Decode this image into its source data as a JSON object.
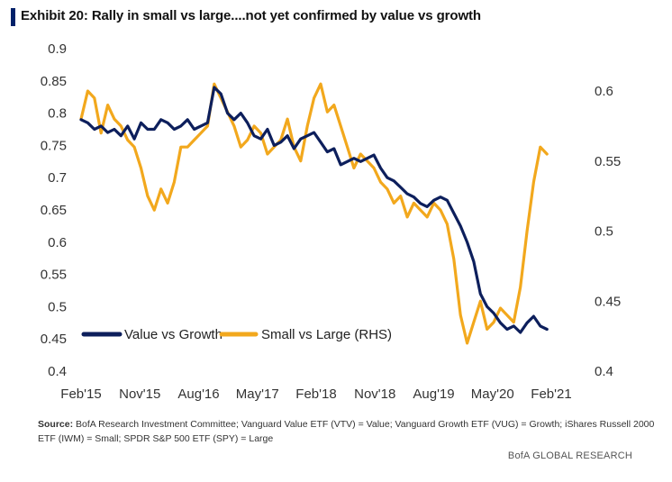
{
  "title": "Exhibit 20: Rally in small vs large....not yet confirmed by value vs growth",
  "source_label": "Source:",
  "source_text": "BofA Research Investment Committee; Vanguard Value ETF (VTV) = Value; Vanguard Growth ETF (VUG) = Growth; iShares Russell 2000 ETF (IWM) = Small; SPDR S&P 500 ETF (SPY) = Large",
  "brand": "BofA GLOBAL RESEARCH",
  "colors": {
    "value_vs_growth": "#0d1f5c",
    "small_vs_large": "#f2a81d"
  },
  "chart_data": {
    "type": "line",
    "title": "Rally in small vs large....not yet confirmed by value vs growth",
    "xlabel": "",
    "ylabel": "",
    "y2label": "",
    "x_tick_labels": [
      "Feb'15",
      "Nov'15",
      "Aug'16",
      "May'17",
      "Feb'18",
      "Nov'18",
      "Aug'19",
      "May'20",
      "Feb'21"
    ],
    "x_range": [
      0,
      72
    ],
    "y_left_ticks": [
      "0.9",
      "0.85",
      "0.8",
      "0.75",
      "0.7",
      "0.65",
      "0.6",
      "0.55",
      "0.5",
      "0.45",
      "0.4"
    ],
    "y_left_range": [
      0.4,
      0.9
    ],
    "y_right_ticks": [
      "0.6",
      "0.55",
      "0.5",
      "0.45",
      "0.4"
    ],
    "y_right_range": [
      0.4,
      0.6
    ],
    "grid": false,
    "legend_position": "bottom-left",
    "series": [
      {
        "name": "Value vs Growth",
        "axis": "left",
        "x": [
          0,
          1,
          2,
          3,
          4,
          5,
          6,
          7,
          8,
          9,
          10,
          11,
          12,
          13,
          14,
          15,
          16,
          17,
          18,
          19,
          20,
          21,
          22,
          23,
          24,
          25,
          26,
          27,
          28,
          29,
          30,
          31,
          32,
          33,
          34,
          35,
          36,
          37,
          38,
          39,
          40,
          41,
          42,
          43,
          44,
          45,
          46,
          47,
          48,
          49,
          50,
          51,
          52,
          53,
          54,
          55,
          56,
          57,
          58,
          59,
          60,
          61,
          62,
          63,
          64,
          65,
          66,
          67,
          68,
          69,
          70
        ],
        "values": [
          0.79,
          0.785,
          0.775,
          0.78,
          0.77,
          0.775,
          0.765,
          0.78,
          0.76,
          0.785,
          0.775,
          0.775,
          0.79,
          0.785,
          0.775,
          0.78,
          0.79,
          0.775,
          0.78,
          0.785,
          0.84,
          0.83,
          0.8,
          0.79,
          0.8,
          0.785,
          0.765,
          0.76,
          0.775,
          0.75,
          0.755,
          0.765,
          0.745,
          0.76,
          0.765,
          0.77,
          0.755,
          0.74,
          0.745,
          0.72,
          0.725,
          0.73,
          0.725,
          0.73,
          0.735,
          0.715,
          0.7,
          0.695,
          0.685,
          0.675,
          0.67,
          0.66,
          0.655,
          0.665,
          0.67,
          0.665,
          0.645,
          0.625,
          0.6,
          0.57,
          0.52,
          0.5,
          0.49,
          0.475,
          0.465,
          0.47,
          0.46,
          0.475,
          0.485,
          0.47,
          0.465
        ]
      },
      {
        "name": "Small vs Large (RHS)",
        "axis": "right",
        "x": [
          0,
          1,
          2,
          3,
          4,
          5,
          6,
          7,
          8,
          9,
          10,
          11,
          12,
          13,
          14,
          15,
          16,
          17,
          18,
          19,
          20,
          21,
          22,
          23,
          24,
          25,
          26,
          27,
          28,
          29,
          30,
          31,
          32,
          33,
          34,
          35,
          36,
          37,
          38,
          39,
          40,
          41,
          42,
          43,
          44,
          45,
          46,
          47,
          48,
          49,
          50,
          51,
          52,
          53,
          54,
          55,
          56,
          57,
          58,
          59,
          60,
          61,
          62,
          63,
          64,
          65,
          66,
          67,
          68,
          69,
          70
        ],
        "values": [
          0.58,
          0.6,
          0.595,
          0.57,
          0.59,
          0.58,
          0.575,
          0.565,
          0.56,
          0.545,
          0.525,
          0.515,
          0.53,
          0.52,
          0.535,
          0.56,
          0.56,
          0.565,
          0.57,
          0.575,
          0.605,
          0.595,
          0.585,
          0.575,
          0.56,
          0.565,
          0.575,
          0.57,
          0.555,
          0.56,
          0.565,
          0.58,
          0.56,
          0.55,
          0.575,
          0.595,
          0.605,
          0.585,
          0.59,
          0.575,
          0.56,
          0.545,
          0.555,
          0.55,
          0.545,
          0.535,
          0.53,
          0.52,
          0.525,
          0.51,
          0.52,
          0.515,
          0.51,
          0.52,
          0.515,
          0.505,
          0.48,
          0.44,
          0.42,
          0.435,
          0.45,
          0.43,
          0.435,
          0.445,
          0.44,
          0.435,
          0.46,
          0.5,
          0.535,
          0.56,
          0.555
        ]
      }
    ]
  }
}
